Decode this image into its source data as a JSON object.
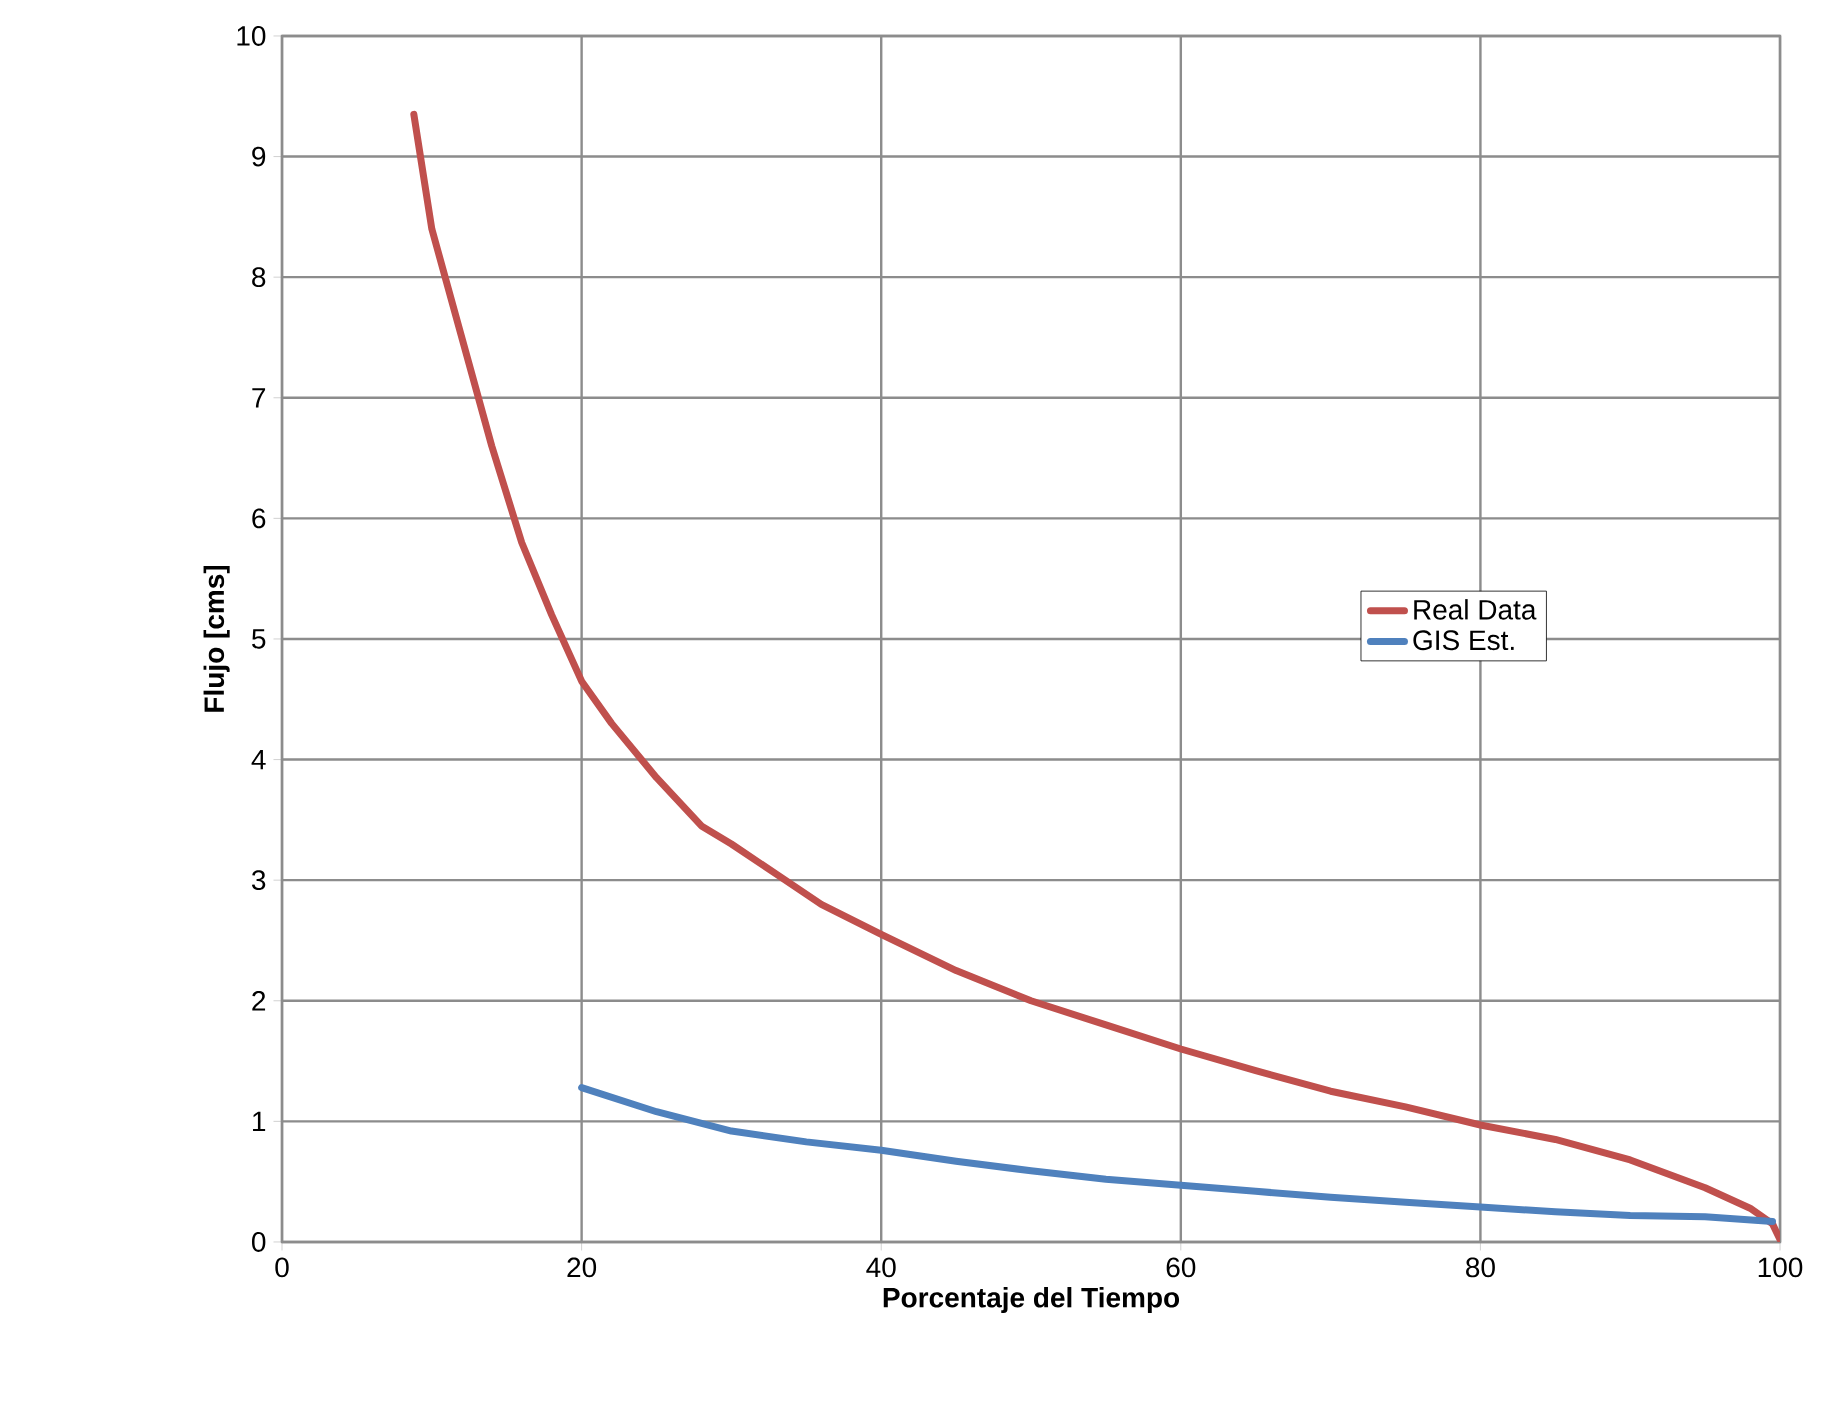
{
  "chart_data": {
    "type": "line",
    "xlabel": "Porcentaje del Tiempo",
    "ylabel": "Flujo [cms]",
    "xlim": [
      0,
      100
    ],
    "ylim": [
      0,
      10
    ],
    "xticks": [
      0,
      20,
      40,
      60,
      80,
      100
    ],
    "yticks": [
      0,
      1,
      2,
      3,
      4,
      5,
      6,
      7,
      8,
      9,
      10
    ],
    "grid": true,
    "legend": "right",
    "line_style": "solid",
    "marker": "none",
    "series": [
      {
        "name": "Real Data",
        "color": "#c0504d",
        "x": [
          8.8,
          10,
          12,
          14,
          16,
          18,
          20,
          22,
          25,
          28,
          30,
          33,
          36,
          40,
          45,
          50,
          55,
          60,
          65,
          70,
          75,
          80,
          85,
          90,
          95,
          98,
          99.5,
          100
        ],
        "values": [
          9.35,
          8.4,
          7.5,
          6.6,
          5.8,
          5.2,
          4.65,
          4.3,
          3.85,
          3.45,
          3.3,
          3.05,
          2.8,
          2.55,
          2.25,
          2.0,
          1.8,
          1.6,
          1.42,
          1.25,
          1.12,
          0.97,
          0.85,
          0.68,
          0.45,
          0.28,
          0.15,
          0.02
        ]
      },
      {
        "name": "GIS Est.",
        "color": "#4f81bd",
        "x": [
          20,
          25,
          30,
          35,
          40,
          45,
          50,
          55,
          60,
          65,
          70,
          75,
          80,
          85,
          90,
          95,
          99.5
        ],
        "values": [
          1.28,
          1.08,
          0.92,
          0.83,
          0.76,
          0.67,
          0.59,
          0.52,
          0.47,
          0.42,
          0.37,
          0.33,
          0.29,
          0.25,
          0.22,
          0.21,
          0.17
        ]
      }
    ]
  }
}
